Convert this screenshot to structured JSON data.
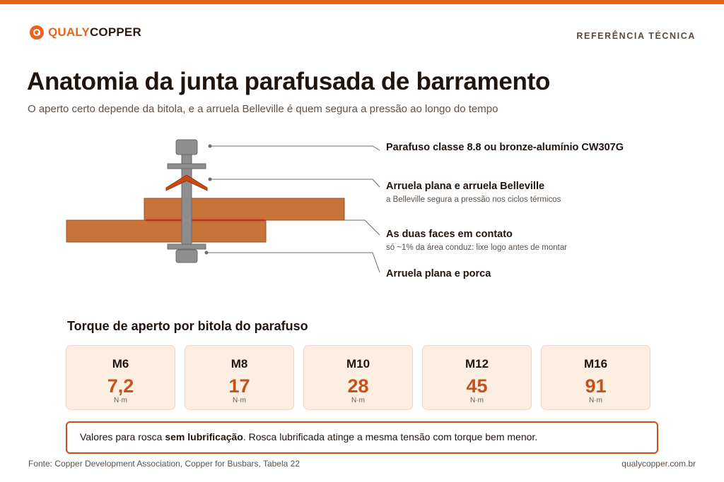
{
  "brand": {
    "name_part1": "QUALY",
    "name_part2": "COPPER"
  },
  "header": {
    "kicker": "REFERÊNCIA TÉCNICA"
  },
  "title": "Anatomia da junta parafusada de barramento",
  "subtitle": "O aperto certo depende da bitola, e a arruela Belleville é quem segura a pressão ao longo do tempo",
  "callouts": [
    {
      "title": "Parafuso classe 8.8 ou bronze-alumínio CW307G",
      "note": ""
    },
    {
      "title": "Arruela plana e arruela Belleville",
      "note": "a Belleville segura a pressão nos ciclos térmicos"
    },
    {
      "title": "As duas faces em contato",
      "note": "só ~1% da área conduz: lixe logo antes de montar"
    },
    {
      "title": "Arruela plana e porca",
      "note": ""
    }
  ],
  "torque": {
    "section_title": "Torque de aperto por bitola do parafuso",
    "unit": "N·m",
    "items": [
      {
        "size": "M6",
        "value": "7,2"
      },
      {
        "size": "M8",
        "value": "17"
      },
      {
        "size": "M10",
        "value": "28"
      },
      {
        "size": "M12",
        "value": "45"
      },
      {
        "size": "M16",
        "value": "91"
      }
    ]
  },
  "note": {
    "before": "Valores para rosca ",
    "bold": "sem lubrificação",
    "after": ". Rosca lubrificada atinge a mesma tensão com torque bem menor."
  },
  "footer": {
    "source": "Fonte: Copper Development Association, Copper for Busbars, Tabela 22",
    "url": "qualycopper.com.br"
  },
  "colors": {
    "accent": "#e8641c",
    "copper_bar": "#c8733a",
    "copper_dark": "#c4521a",
    "steel": "#8e8e8e",
    "card_bg": "#fdeee2"
  },
  "icons": [
    "qualycopper-logo-icon"
  ]
}
